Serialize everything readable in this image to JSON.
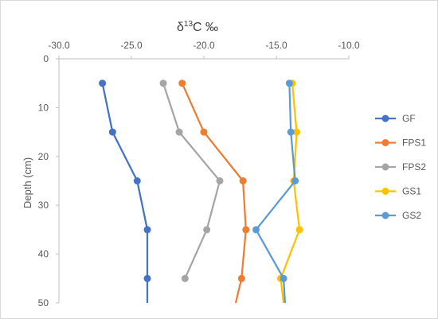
{
  "chart_data": {
    "type": "line",
    "title": "δ13C ‰",
    "title_parts": {
      "prefix": "δ",
      "superscript": "13",
      "suffix": "C ‰"
    },
    "xlabel": "",
    "ylabel": "Depth (cm)",
    "x_axis_position": "top",
    "y_axis_reversed": true,
    "xlim": [
      -30.0,
      -10.0
    ],
    "ylim": [
      0,
      50
    ],
    "x_ticks": [
      "-30.0",
      "-25.0",
      "-20.0",
      "-15.0",
      "-10.0"
    ],
    "y_ticks": [
      "0",
      "10",
      "20",
      "30",
      "40",
      "50"
    ],
    "x_tick_values": [
      -30,
      -25,
      -20,
      -15,
      -10
    ],
    "y_tick_values": [
      0,
      10,
      20,
      30,
      40,
      50
    ],
    "grid": false,
    "legend_placement": "right",
    "series": [
      {
        "name": "GF",
        "color": "#4472C4",
        "points": [
          [
            -27.0,
            5
          ],
          [
            -26.3,
            15
          ],
          [
            -24.6,
            25
          ],
          [
            -23.9,
            35
          ],
          [
            -23.9,
            45
          ],
          [
            -23.9,
            50
          ]
        ],
        "marker_count": 5
      },
      {
        "name": "FPS1",
        "color": "#ED7D31",
        "points": [
          [
            -21.5,
            5
          ],
          [
            -20.0,
            15
          ],
          [
            -17.3,
            25
          ],
          [
            -17.1,
            35
          ],
          [
            -17.4,
            45
          ],
          [
            -17.8,
            50
          ]
        ],
        "marker_count": 5
      },
      {
        "name": "FPS2",
        "color": "#A5A5A5",
        "points": [
          [
            -22.8,
            5
          ],
          [
            -21.7,
            15
          ],
          [
            -18.9,
            25
          ],
          [
            -19.8,
            35
          ],
          [
            -21.3,
            45
          ]
        ],
        "marker_count": 5
      },
      {
        "name": "GS1",
        "color": "#FFC000",
        "points": [
          [
            -13.9,
            5
          ],
          [
            -13.6,
            15
          ],
          [
            -13.8,
            25
          ],
          [
            -13.4,
            35
          ],
          [
            -14.7,
            45
          ],
          [
            -14.5,
            50
          ]
        ],
        "marker_count": 5
      },
      {
        "name": "GS2",
        "color": "#5B9BD5",
        "points": [
          [
            -14.1,
            5
          ],
          [
            -14.0,
            15
          ],
          [
            -13.7,
            25
          ],
          [
            -16.4,
            35
          ],
          [
            -14.5,
            45
          ],
          [
            -14.4,
            50
          ]
        ],
        "marker_count": 5
      }
    ]
  }
}
